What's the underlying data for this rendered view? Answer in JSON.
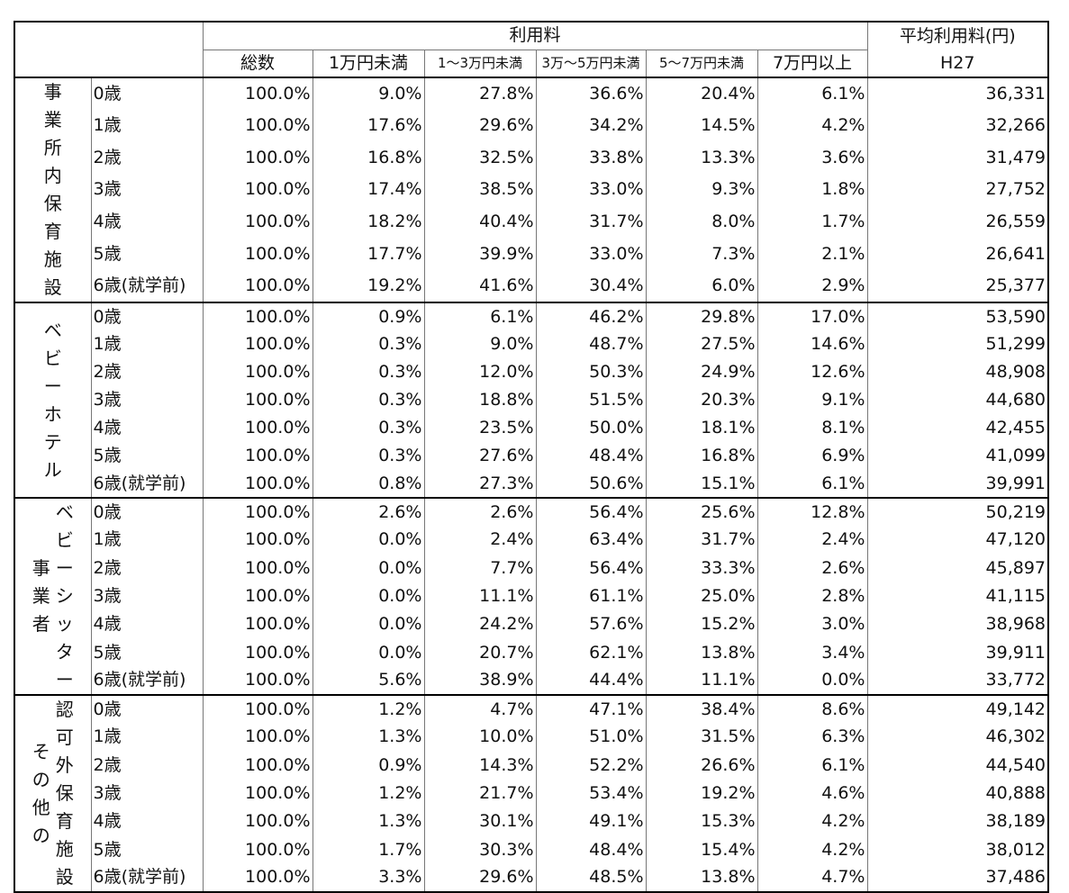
{
  "header": {
    "group_label": "利用料",
    "avg_label": "平均利用料(円)",
    "avg_year": "H27",
    "cols": [
      "総数",
      "1万円未満",
      "1～3万円未満",
      "3万～5万円未満",
      "5～7万円未満",
      "7万円以上"
    ]
  },
  "groups": [
    {
      "label": "事業所内保育施設",
      "label2": "",
      "rows": [
        {
          "age": "0歳",
          "total": "100.0%",
          "c1": "9.0%",
          "c2": "27.8%",
          "c3": "36.6%",
          "c4": "20.4%",
          "c5": "6.1%",
          "avg": "36,331"
        },
        {
          "age": "1歳",
          "total": "100.0%",
          "c1": "17.6%",
          "c2": "29.6%",
          "c3": "34.2%",
          "c4": "14.5%",
          "c5": "4.2%",
          "avg": "32,266"
        },
        {
          "age": "2歳",
          "total": "100.0%",
          "c1": "16.8%",
          "c2": "32.5%",
          "c3": "33.8%",
          "c4": "13.3%",
          "c5": "3.6%",
          "avg": "31,479"
        },
        {
          "age": "3歳",
          "total": "100.0%",
          "c1": "17.4%",
          "c2": "38.5%",
          "c3": "33.0%",
          "c4": "9.3%",
          "c5": "1.8%",
          "avg": "27,752"
        },
        {
          "age": "4歳",
          "total": "100.0%",
          "c1": "18.2%",
          "c2": "40.4%",
          "c3": "31.7%",
          "c4": "8.0%",
          "c5": "1.7%",
          "avg": "26,559"
        },
        {
          "age": "5歳",
          "total": "100.0%",
          "c1": "17.7%",
          "c2": "39.9%",
          "c3": "33.0%",
          "c4": "7.3%",
          "c5": "2.1%",
          "avg": "26,641"
        },
        {
          "age": "6歳(就学前)",
          "total": "100.0%",
          "c1": "19.2%",
          "c2": "41.6%",
          "c3": "30.4%",
          "c4": "6.0%",
          "c5": "2.9%",
          "avg": "25,377"
        }
      ]
    },
    {
      "label": "ベビーホテル",
      "label2": "",
      "rows": [
        {
          "age": "0歳",
          "total": "100.0%",
          "c1": "0.9%",
          "c2": "6.1%",
          "c3": "46.2%",
          "c4": "29.8%",
          "c5": "17.0%",
          "avg": "53,590"
        },
        {
          "age": "1歳",
          "total": "100.0%",
          "c1": "0.3%",
          "c2": "9.0%",
          "c3": "48.7%",
          "c4": "27.5%",
          "c5": "14.6%",
          "avg": "51,299"
        },
        {
          "age": "2歳",
          "total": "100.0%",
          "c1": "0.3%",
          "c2": "12.0%",
          "c3": "50.3%",
          "c4": "24.9%",
          "c5": "12.6%",
          "avg": "48,908"
        },
        {
          "age": "3歳",
          "total": "100.0%",
          "c1": "0.3%",
          "c2": "18.8%",
          "c3": "51.5%",
          "c4": "20.3%",
          "c5": "9.1%",
          "avg": "44,680"
        },
        {
          "age": "4歳",
          "total": "100.0%",
          "c1": "0.3%",
          "c2": "23.5%",
          "c3": "50.0%",
          "c4": "18.1%",
          "c5": "8.1%",
          "avg": "42,455"
        },
        {
          "age": "5歳",
          "total": "100.0%",
          "c1": "0.3%",
          "c2": "27.6%",
          "c3": "48.4%",
          "c4": "16.8%",
          "c5": "6.9%",
          "avg": "41,099"
        },
        {
          "age": "6歳(就学前)",
          "total": "100.0%",
          "c1": "0.8%",
          "c2": "27.3%",
          "c3": "50.6%",
          "c4": "15.1%",
          "c5": "6.1%",
          "avg": "39,991"
        }
      ]
    },
    {
      "label": "ベビーシッター",
      "label2": "事業者",
      "rows": [
        {
          "age": "0歳",
          "total": "100.0%",
          "c1": "2.6%",
          "c2": "2.6%",
          "c3": "56.4%",
          "c4": "25.6%",
          "c5": "12.8%",
          "avg": "50,219"
        },
        {
          "age": "1歳",
          "total": "100.0%",
          "c1": "0.0%",
          "c2": "2.4%",
          "c3": "63.4%",
          "c4": "31.7%",
          "c5": "2.4%",
          "avg": "47,120"
        },
        {
          "age": "2歳",
          "total": "100.0%",
          "c1": "0.0%",
          "c2": "7.7%",
          "c3": "56.4%",
          "c4": "33.3%",
          "c5": "2.6%",
          "avg": "45,897"
        },
        {
          "age": "3歳",
          "total": "100.0%",
          "c1": "0.0%",
          "c2": "11.1%",
          "c3": "61.1%",
          "c4": "25.0%",
          "c5": "2.8%",
          "avg": "41,115"
        },
        {
          "age": "4歳",
          "total": "100.0%",
          "c1": "0.0%",
          "c2": "24.2%",
          "c3": "57.6%",
          "c4": "15.2%",
          "c5": "3.0%",
          "avg": "38,968"
        },
        {
          "age": "5歳",
          "total": "100.0%",
          "c1": "0.0%",
          "c2": "20.7%",
          "c3": "62.1%",
          "c4": "13.8%",
          "c5": "3.4%",
          "avg": "39,911"
        },
        {
          "age": "6歳(就学前)",
          "total": "100.0%",
          "c1": "5.6%",
          "c2": "38.9%",
          "c3": "44.4%",
          "c4": "11.1%",
          "c5": "0.0%",
          "avg": "33,772"
        }
      ]
    },
    {
      "label": "認可外保育施設",
      "label2": "その他の",
      "rows": [
        {
          "age": "0歳",
          "total": "100.0%",
          "c1": "1.2%",
          "c2": "4.7%",
          "c3": "47.1%",
          "c4": "38.4%",
          "c5": "8.6%",
          "avg": "49,142"
        },
        {
          "age": "1歳",
          "total": "100.0%",
          "c1": "1.3%",
          "c2": "10.0%",
          "c3": "51.0%",
          "c4": "31.5%",
          "c5": "6.3%",
          "avg": "46,302"
        },
        {
          "age": "2歳",
          "total": "100.0%",
          "c1": "0.9%",
          "c2": "14.3%",
          "c3": "52.2%",
          "c4": "26.6%",
          "c5": "6.1%",
          "avg": "44,540"
        },
        {
          "age": "3歳",
          "total": "100.0%",
          "c1": "1.2%",
          "c2": "21.7%",
          "c3": "53.4%",
          "c4": "19.2%",
          "c5": "4.6%",
          "avg": "40,888"
        },
        {
          "age": "4歳",
          "total": "100.0%",
          "c1": "1.3%",
          "c2": "30.1%",
          "c3": "49.1%",
          "c4": "15.3%",
          "c5": "4.2%",
          "avg": "38,189"
        },
        {
          "age": "5歳",
          "total": "100.0%",
          "c1": "1.7%",
          "c2": "30.3%",
          "c3": "48.4%",
          "c4": "15.4%",
          "c5": "4.2%",
          "avg": "38,012"
        },
        {
          "age": "6歳(就学前)",
          "total": "100.0%",
          "c1": "3.3%",
          "c2": "29.6%",
          "c3": "48.5%",
          "c4": "13.8%",
          "c5": "4.7%",
          "avg": "37,486"
        }
      ]
    }
  ]
}
